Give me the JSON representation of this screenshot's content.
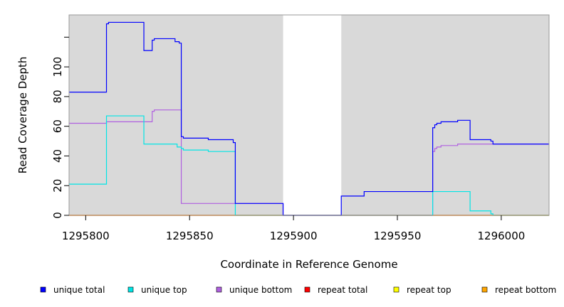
{
  "chart_data": {
    "type": "line",
    "title": "",
    "xlabel": "Coordinate in Reference Genome",
    "ylabel": "Read Coverage Depth",
    "xlim": [
      1295792,
      1296023
    ],
    "ylim": [
      0,
      135
    ],
    "x_ticks": [
      1295800,
      1295850,
      1295900,
      1295950,
      1296000
    ],
    "x_tick_labels": [
      "1295800",
      "1295850",
      "1295900",
      "1295950",
      "1296000"
    ],
    "y_ticks": [
      0,
      20,
      40,
      60,
      80,
      100,
      120
    ],
    "y_tick_labels": [
      "0",
      "20",
      "40",
      "60",
      "80",
      "100",
      ""
    ],
    "background_color": "#d9d9d9",
    "gap_regions": [
      [
        1295895,
        1295923
      ]
    ],
    "grid": false,
    "legend_position": "bottom",
    "series": [
      {
        "name": "unique total",
        "color": "#0000ff",
        "points": [
          [
            1295792,
            83
          ],
          [
            1295810,
            83
          ],
          [
            1295810,
            129
          ],
          [
            1295811,
            129
          ],
          [
            1295811,
            130
          ],
          [
            1295828,
            130
          ],
          [
            1295828,
            111
          ],
          [
            1295832,
            111
          ],
          [
            1295832,
            118
          ],
          [
            1295833,
            118
          ],
          [
            1295833,
            119
          ],
          [
            1295843,
            119
          ],
          [
            1295843,
            117
          ],
          [
            1295845,
            117
          ],
          [
            1295845,
            116
          ],
          [
            1295846,
            116
          ],
          [
            1295846,
            53
          ],
          [
            1295847,
            53
          ],
          [
            1295847,
            52
          ],
          [
            1295859,
            52
          ],
          [
            1295859,
            51
          ],
          [
            1295871,
            51
          ],
          [
            1295871,
            49
          ],
          [
            1295872,
            49
          ],
          [
            1295872,
            8
          ],
          [
            1295895,
            8
          ],
          [
            1295895,
            0
          ],
          [
            1295923,
            0
          ],
          [
            1295923,
            13
          ],
          [
            1295934,
            13
          ],
          [
            1295934,
            16
          ],
          [
            1295967,
            16
          ],
          [
            1295967,
            59
          ],
          [
            1295968,
            59
          ],
          [
            1295968,
            61
          ],
          [
            1295969,
            61
          ],
          [
            1295969,
            62
          ],
          [
            1295971,
            62
          ],
          [
            1295971,
            63
          ],
          [
            1295979,
            63
          ],
          [
            1295979,
            64
          ],
          [
            1295985,
            64
          ],
          [
            1295985,
            51
          ],
          [
            1295995,
            51
          ],
          [
            1295995,
            50
          ],
          [
            1295996,
            50
          ],
          [
            1295996,
            48
          ],
          [
            1296023,
            48
          ]
        ]
      },
      {
        "name": "unique top",
        "color": "#00e5e5",
        "points": [
          [
            1295792,
            21
          ],
          [
            1295810,
            21
          ],
          [
            1295810,
            67
          ],
          [
            1295828,
            67
          ],
          [
            1295828,
            48
          ],
          [
            1295844,
            48
          ],
          [
            1295844,
            46
          ],
          [
            1295846,
            46
          ],
          [
            1295846,
            45
          ],
          [
            1295847,
            45
          ],
          [
            1295847,
            44
          ],
          [
            1295859,
            44
          ],
          [
            1295859,
            43
          ],
          [
            1295872,
            43
          ],
          [
            1295872,
            0
          ],
          [
            1295967,
            0
          ],
          [
            1295967,
            16
          ],
          [
            1295985,
            16
          ],
          [
            1295985,
            3
          ],
          [
            1295995,
            3
          ],
          [
            1295995,
            1
          ],
          [
            1295996,
            1
          ],
          [
            1295996,
            0
          ],
          [
            1296023,
            0
          ]
        ]
      },
      {
        "name": "unique bottom",
        "color": "#b060e0",
        "points": [
          [
            1295792,
            62
          ],
          [
            1295810,
            62
          ],
          [
            1295810,
            63
          ],
          [
            1295828,
            63
          ],
          [
            1295832,
            63
          ],
          [
            1295832,
            70
          ],
          [
            1295833,
            70
          ],
          [
            1295833,
            71
          ],
          [
            1295846,
            71
          ],
          [
            1295846,
            8
          ],
          [
            1295895,
            8
          ],
          [
            1295895,
            0
          ],
          [
            1295967,
            0
          ],
          [
            1295967,
            43
          ],
          [
            1295968,
            43
          ],
          [
            1295968,
            45
          ],
          [
            1295969,
            45
          ],
          [
            1295969,
            46
          ],
          [
            1295971,
            46
          ],
          [
            1295971,
            47
          ],
          [
            1295979,
            47
          ],
          [
            1295979,
            48
          ],
          [
            1296023,
            48
          ]
        ]
      },
      {
        "name": "repeat total",
        "color": "#ff0000",
        "points": [
          [
            1295792,
            0
          ],
          [
            1296023,
            0
          ]
        ]
      },
      {
        "name": "repeat top",
        "color": "#ffff00",
        "points": [
          [
            1295792,
            0
          ],
          [
            1296023,
            0
          ]
        ]
      },
      {
        "name": "repeat bottom",
        "color": "#ffa500",
        "points": [
          [
            1295792,
            0
          ],
          [
            1296023,
            0
          ]
        ]
      }
    ]
  }
}
